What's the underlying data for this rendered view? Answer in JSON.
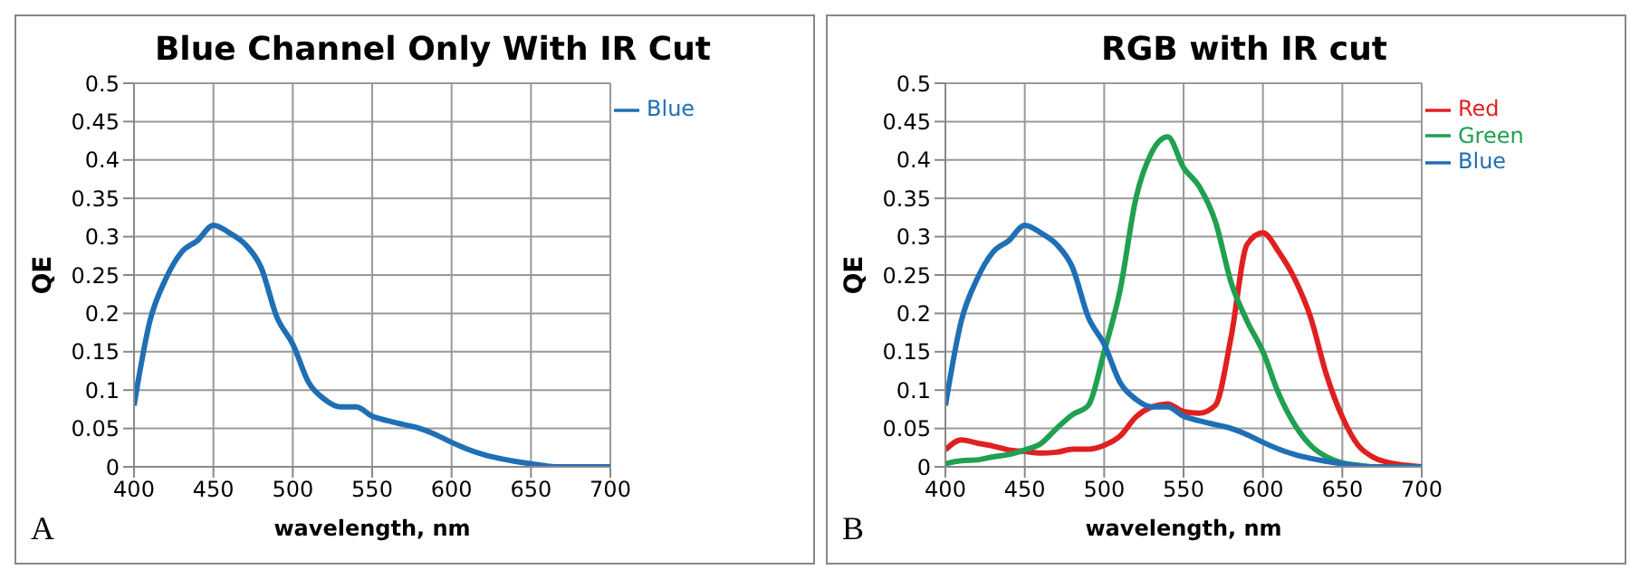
{
  "chart_data": [
    {
      "type": "line",
      "title": "Blue Channel Only With IR Cut",
      "xlabel": "wavelength, nm",
      "ylabel": "QE",
      "annotations": [
        "A"
      ],
      "x": [
        400,
        410,
        420,
        430,
        440,
        450,
        460,
        470,
        480,
        490,
        500,
        510,
        520,
        530,
        540,
        550,
        560,
        570,
        580,
        590,
        600,
        610,
        620,
        630,
        640,
        650,
        660,
        670,
        680,
        690,
        700
      ],
      "series": [
        {
          "name": "Blue",
          "color": "#1f6fb5",
          "values": [
            0.08,
            0.19,
            0.245,
            0.28,
            0.295,
            0.315,
            0.305,
            0.29,
            0.26,
            0.195,
            0.16,
            0.11,
            0.088,
            0.078,
            0.078,
            0.066,
            0.06,
            0.055,
            0.05,
            0.042,
            0.032,
            0.023,
            0.016,
            0.011,
            0.007,
            0.004,
            0.001,
            0,
            0,
            0,
            0
          ]
        }
      ],
      "xlim": [
        400,
        700
      ],
      "xticks": [
        400,
        450,
        500,
        550,
        600,
        650,
        700
      ],
      "ylim": [
        0,
        0.5
      ],
      "yticks": [
        0,
        0.05,
        0.1,
        0.15,
        0.2,
        0.25,
        0.3,
        0.35,
        0.4,
        0.45,
        0.5
      ],
      "grid": true,
      "legend": "top right",
      "marker": "none"
    },
    {
      "type": "line",
      "title": "RGB with IR cut",
      "xlabel": "wavelength, nm",
      "ylabel": "QE",
      "annotations": [
        "B"
      ],
      "x": [
        400,
        410,
        420,
        430,
        440,
        450,
        460,
        470,
        480,
        490,
        500,
        510,
        520,
        530,
        540,
        550,
        560,
        570,
        580,
        590,
        600,
        610,
        620,
        630,
        640,
        650,
        660,
        670,
        680,
        690,
        700
      ],
      "series": [
        {
          "name": "Red",
          "color": "#e02020",
          "values": [
            0.022,
            0.035,
            0.031,
            0.027,
            0.022,
            0.02,
            0.018,
            0.019,
            0.023,
            0.023,
            0.028,
            0.04,
            0.065,
            0.078,
            0.082,
            0.072,
            0.07,
            0.08,
            0.17,
            0.29,
            0.305,
            0.28,
            0.245,
            0.195,
            0.12,
            0.065,
            0.028,
            0.012,
            0.005,
            0.002,
            0
          ]
        },
        {
          "name": "Green",
          "color": "#20a050",
          "values": [
            0.004,
            0.008,
            0.009,
            0.013,
            0.016,
            0.022,
            0.03,
            0.05,
            0.068,
            0.08,
            0.15,
            0.23,
            0.35,
            0.41,
            0.43,
            0.39,
            0.365,
            0.32,
            0.24,
            0.19,
            0.15,
            0.095,
            0.055,
            0.028,
            0.013,
            0.005,
            0.002,
            0,
            0,
            null,
            null
          ]
        },
        {
          "name": "Blue",
          "color": "#1f6fb5",
          "values": [
            0.08,
            0.19,
            0.245,
            0.28,
            0.295,
            0.315,
            0.305,
            0.29,
            0.26,
            0.195,
            0.16,
            0.11,
            0.088,
            0.078,
            0.078,
            0.066,
            0.06,
            0.055,
            0.05,
            0.042,
            0.032,
            0.023,
            0.016,
            0.011,
            0.007,
            0.004,
            0.001,
            0,
            0,
            0,
            0
          ]
        }
      ],
      "xlim": [
        400,
        700
      ],
      "xticks": [
        400,
        450,
        500,
        550,
        600,
        650,
        700
      ],
      "ylim": [
        0,
        0.5
      ],
      "yticks": [
        0,
        0.05,
        0.1,
        0.15,
        0.2,
        0.25,
        0.3,
        0.35,
        0.4,
        0.45,
        0.5
      ],
      "grid": true,
      "legend": "top right",
      "marker": "none"
    }
  ]
}
